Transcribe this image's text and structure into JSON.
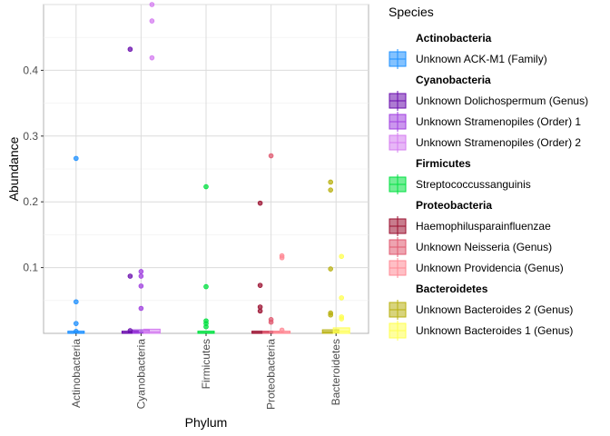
{
  "chart_data": {
    "type": "boxplot-scatter",
    "xlabel": "Phylum",
    "ylabel": "Abundance",
    "categories": [
      "Actinobacteria",
      "Cyanobacteria",
      "Firmicutes",
      "Proteobacteria",
      "Bacteroidetes"
    ],
    "yticks": [
      "0.1",
      "0.2",
      "0.3",
      "0.4"
    ],
    "ytick_values": [
      0.1,
      0.2,
      0.3,
      0.4
    ],
    "ylim": [
      0,
      0.5
    ],
    "grid": true,
    "legend_title": "Species",
    "legend_placement": "right",
    "legend": [
      {
        "group": "Actinobacteria",
        "items": [
          {
            "label": "Unknown ACK-M1 (Family)",
            "color": "#1E90FF"
          }
        ]
      },
      {
        "group": "Cyanobacteria",
        "items": [
          {
            "label": "Unknown Dolichospermum (Genus)",
            "color": "#6A0DAD"
          },
          {
            "label": "Unknown Stramenopiles (Order) 1",
            "color": "#A040E0"
          },
          {
            "label": "Unknown Stramenopiles (Order) 2",
            "color": "#D47CF0"
          }
        ]
      },
      {
        "group": "Firmicutes",
        "items": [
          {
            "label": "Streptococcussanguinis",
            "color": "#00E040"
          }
        ]
      },
      {
        "group": "Proteobacteria",
        "items": [
          {
            "label": "Haemophilusparainfluenzae",
            "color": "#9B1030"
          },
          {
            "label": "Unknown Neisseria (Genus)",
            "color": "#E05A70"
          },
          {
            "label": "Unknown Providencia (Genus)",
            "color": "#FF8A95"
          }
        ]
      },
      {
        "group": "Bacteroidetes",
        "items": [
          {
            "label": "Unknown Bacteroides 2 (Genus)",
            "color": "#B8B010"
          },
          {
            "label": "Unknown Bacteroides 1 (Genus)",
            "color": "#FFFF50"
          }
        ]
      }
    ],
    "boxes": [
      {
        "phylum": "Actinobacteria",
        "series": "Unknown ACK-M1 (Family)",
        "offset": 0,
        "color": "#1E90FF",
        "q1": 0,
        "q3": 0.002,
        "median": 0.001
      },
      {
        "phylum": "Cyanobacteria",
        "series": "Unknown Dolichospermum (Genus)",
        "offset": -1,
        "color": "#6A0DAD",
        "q1": 0,
        "q3": 0.002,
        "median": 0.001
      },
      {
        "phylum": "Cyanobacteria",
        "series": "Unknown Stramenopiles (Order) 1",
        "offset": 0,
        "color": "#A040E0",
        "q1": 0,
        "q3": 0.004,
        "median": 0.002
      },
      {
        "phylum": "Cyanobacteria",
        "series": "Unknown Stramenopiles (Order) 2",
        "offset": 1,
        "color": "#D47CF0",
        "q1": 0,
        "q3": 0.005,
        "median": 0.002
      },
      {
        "phylum": "Firmicutes",
        "series": "Streptococcussanguinis",
        "offset": 0,
        "color": "#00E040",
        "q1": 0,
        "q3": 0.002,
        "median": 0.001
      },
      {
        "phylum": "Proteobacteria",
        "series": "Haemophilusparainfluenzae",
        "offset": -1,
        "color": "#9B1030",
        "q1": 0,
        "q3": 0.002,
        "median": 0.001
      },
      {
        "phylum": "Proteobacteria",
        "series": "Unknown Neisseria (Genus)",
        "offset": 0,
        "color": "#E05A70",
        "q1": 0,
        "q3": 0.002,
        "median": 0.001
      },
      {
        "phylum": "Proteobacteria",
        "series": "Unknown Providencia (Genus)",
        "offset": 1,
        "color": "#FF8A95",
        "q1": 0,
        "q3": 0.002,
        "median": 0.001
      },
      {
        "phylum": "Bacteroidetes",
        "series": "Unknown Bacteroides 2 (Genus)",
        "offset": -0.5,
        "color": "#B8B010",
        "q1": 0,
        "q3": 0.004,
        "median": 0.002
      },
      {
        "phylum": "Bacteroidetes",
        "series": "Unknown Bacteroides 1 (Genus)",
        "offset": 0.5,
        "color": "#FFFF50",
        "q1": 0,
        "q3": 0.007,
        "median": 0.003
      }
    ],
    "points": [
      {
        "phylum": "Actinobacteria",
        "offset": 0,
        "color": "#1E90FF",
        "y": 0.266
      },
      {
        "phylum": "Actinobacteria",
        "offset": 0,
        "color": "#1E90FF",
        "y": 0.048
      },
      {
        "phylum": "Actinobacteria",
        "offset": 0,
        "color": "#1E90FF",
        "y": 0.015
      },
      {
        "phylum": "Actinobacteria",
        "offset": 0,
        "color": "#1E90FF",
        "y": 0.003
      },
      {
        "phylum": "Cyanobacteria",
        "offset": -1,
        "color": "#6A0DAD",
        "y": 0.432
      },
      {
        "phylum": "Cyanobacteria",
        "offset": -1,
        "color": "#6A0DAD",
        "y": 0.087
      },
      {
        "phylum": "Cyanobacteria",
        "offset": -1,
        "color": "#6A0DAD",
        "y": 0.004
      },
      {
        "phylum": "Cyanobacteria",
        "offset": 0,
        "color": "#A040E0",
        "y": 0.094
      },
      {
        "phylum": "Cyanobacteria",
        "offset": 0,
        "color": "#A040E0",
        "y": 0.087
      },
      {
        "phylum": "Cyanobacteria",
        "offset": 0,
        "color": "#A040E0",
        "y": 0.072
      },
      {
        "phylum": "Cyanobacteria",
        "offset": 0,
        "color": "#A040E0",
        "y": 0.038
      },
      {
        "phylum": "Cyanobacteria",
        "offset": 1,
        "color": "#D47CF0",
        "y": 0.5
      },
      {
        "phylum": "Cyanobacteria",
        "offset": 1,
        "color": "#D47CF0",
        "y": 0.475
      },
      {
        "phylum": "Cyanobacteria",
        "offset": 1,
        "color": "#D47CF0",
        "y": 0.419
      },
      {
        "phylum": "Firmicutes",
        "offset": 0,
        "color": "#00E040",
        "y": 0.223
      },
      {
        "phylum": "Firmicutes",
        "offset": 0,
        "color": "#00E040",
        "y": 0.071
      },
      {
        "phylum": "Firmicutes",
        "offset": 0,
        "color": "#00E040",
        "y": 0.019
      },
      {
        "phylum": "Firmicutes",
        "offset": 0,
        "color": "#00E040",
        "y": 0.015
      },
      {
        "phylum": "Firmicutes",
        "offset": 0,
        "color": "#00E040",
        "y": 0.01
      },
      {
        "phylum": "Proteobacteria",
        "offset": -1,
        "color": "#9B1030",
        "y": 0.198
      },
      {
        "phylum": "Proteobacteria",
        "offset": -1,
        "color": "#9B1030",
        "y": 0.073
      },
      {
        "phylum": "Proteobacteria",
        "offset": -1,
        "color": "#9B1030",
        "y": 0.04
      },
      {
        "phylum": "Proteobacteria",
        "offset": -1,
        "color": "#9B1030",
        "y": 0.034
      },
      {
        "phylum": "Proteobacteria",
        "offset": 0,
        "color": "#E05A70",
        "y": 0.27
      },
      {
        "phylum": "Proteobacteria",
        "offset": 0,
        "color": "#E05A70",
        "y": 0.021
      },
      {
        "phylum": "Proteobacteria",
        "offset": 0,
        "color": "#E05A70",
        "y": 0.017
      },
      {
        "phylum": "Proteobacteria",
        "offset": 1,
        "color": "#FF8A95",
        "y": 0.118
      },
      {
        "phylum": "Proteobacteria",
        "offset": 1,
        "color": "#FF8A95",
        "y": 0.115
      },
      {
        "phylum": "Proteobacteria",
        "offset": 1,
        "color": "#FF8A95",
        "y": 0.005
      },
      {
        "phylum": "Bacteroidetes",
        "offset": -0.5,
        "color": "#B8B010",
        "y": 0.23
      },
      {
        "phylum": "Bacteroidetes",
        "offset": -0.5,
        "color": "#B8B010",
        "y": 0.218
      },
      {
        "phylum": "Bacteroidetes",
        "offset": -0.5,
        "color": "#B8B010",
        "y": 0.098
      },
      {
        "phylum": "Bacteroidetes",
        "offset": -0.5,
        "color": "#B8B010",
        "y": 0.031
      },
      {
        "phylum": "Bacteroidetes",
        "offset": -0.5,
        "color": "#B8B010",
        "y": 0.028
      },
      {
        "phylum": "Bacteroidetes",
        "offset": 0.5,
        "color": "#FFFF50",
        "y": 0.117
      },
      {
        "phylum": "Bacteroidetes",
        "offset": 0.5,
        "color": "#FFFF50",
        "y": 0.054
      },
      {
        "phylum": "Bacteroidetes",
        "offset": 0.5,
        "color": "#FFFF50",
        "y": 0.025
      },
      {
        "phylum": "Bacteroidetes",
        "offset": 0.5,
        "color": "#FFFF50",
        "y": 0.022
      }
    ]
  }
}
